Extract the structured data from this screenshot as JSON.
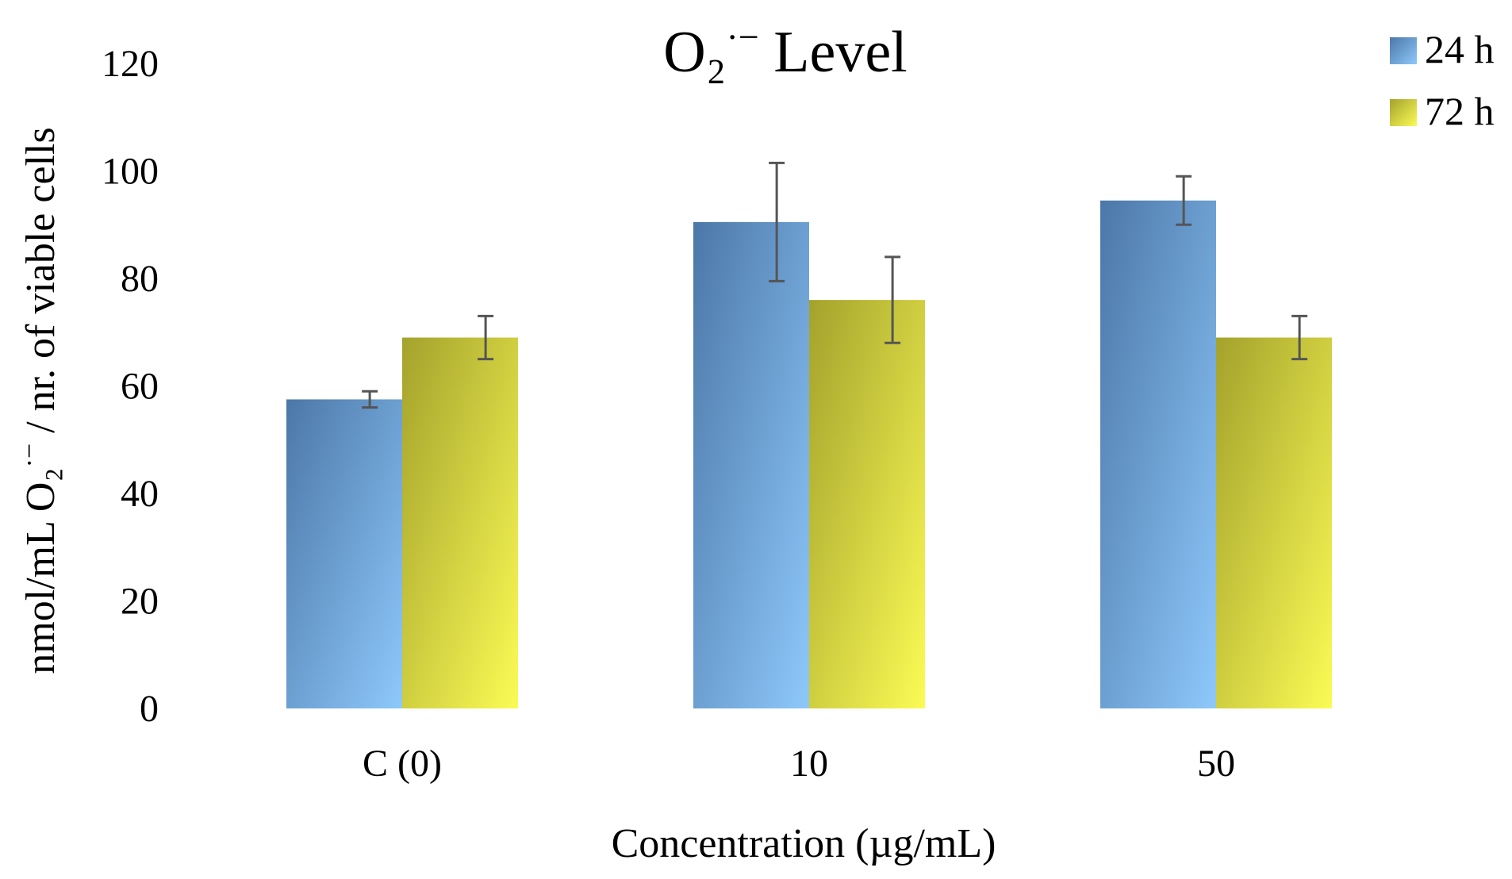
{
  "chart_data": {
    "type": "bar",
    "title_prefix": "O₂",
    "title_superscript": "·−",
    "title_suffix": " Level",
    "xlabel": "Concentration (µg/mL)",
    "ylabel_prefix": "nmol/mL O₂",
    "ylabel_superscript": "·−",
    "ylabel_suffix": " / nr. of viable cells",
    "categories": [
      "C (0)",
      "10",
      "50"
    ],
    "ylim": [
      0,
      120
    ],
    "yticks": [
      "0",
      "20",
      "40",
      "60",
      "80",
      "100",
      "120"
    ],
    "series": [
      {
        "name": "24 h",
        "values": [
          57.5,
          90.5,
          94.5
        ],
        "errors": [
          1.5,
          11.0,
          4.5
        ],
        "color_dark": "#4c77a8",
        "color_light": "#8ec8fb"
      },
      {
        "name": "72 h",
        "values": [
          69.0,
          76.0,
          69.0
        ],
        "errors": [
          4.0,
          8.0,
          4.0
        ],
        "color_dark": "#a4a22c",
        "color_light": "#fbfb55"
      }
    ],
    "legend_position": "top-right",
    "grid": false
  }
}
